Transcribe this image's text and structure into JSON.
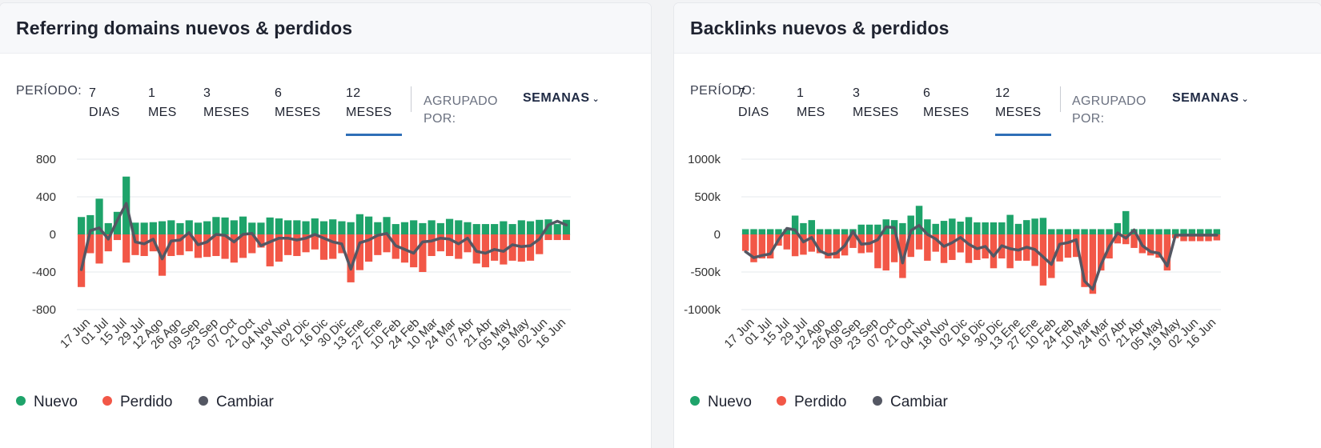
{
  "colors": {
    "new": "#1ea36a",
    "lost": "#f25747",
    "change": "#545763",
    "grid": "#e6e8ec",
    "active": "#2f6fb7"
  },
  "controls": {
    "period_label": "PERÍODO:",
    "periods": [
      {
        "line1": "7",
        "line2": "DIAS"
      },
      {
        "line1": "1",
        "line2": "MES"
      },
      {
        "line1": "3",
        "line2": "MESES"
      },
      {
        "line1": "6",
        "line2": "MESES"
      },
      {
        "line1": "12",
        "line2": "MESES"
      }
    ],
    "active_period": 4,
    "group_label_1": "AGRUPADO",
    "group_label_2": "POR:",
    "group_value": "SEMANAS"
  },
  "legend": {
    "new": "Nuevo",
    "lost": "Perdido",
    "change": "Cambiar"
  },
  "panels": {
    "left": {
      "title": "Referring domains nuevos & perdidos"
    },
    "right": {
      "title": "Backlinks nuevos & perdidos"
    }
  },
  "chart_data": [
    {
      "type": "bar",
      "title": "Referring domains nuevos & perdidos",
      "ylim": [
        -800,
        800
      ],
      "yticks": [
        800,
        400,
        0,
        -400,
        -800
      ],
      "ytick_labels": [
        "800",
        "400",
        "0",
        "-400",
        "-800"
      ],
      "xtick_labels": [
        "17 Jun",
        "01 Jul",
        "15 Jul",
        "29 Jul",
        "12 Ago",
        "26 Ago",
        "09 Sep",
        "23 Sep",
        "07 Oct",
        "21 Oct",
        "04 Nov",
        "18 Nov",
        "02 Dic",
        "16 Dic",
        "30 Dic",
        "13 Ene",
        "27 Ene",
        "10 Feb",
        "24 Feb",
        "10 Mar",
        "24 Mar",
        "07 Abr",
        "21 Abr",
        "05 May",
        "19 May",
        "02 Jun",
        "16 Jun"
      ],
      "series": [
        {
          "name": "Nuevo",
          "values": [
            185,
            205,
            380,
            120,
            240,
            615,
            125,
            125,
            130,
            140,
            150,
            120,
            150,
            125,
            140,
            185,
            180,
            150,
            190,
            125,
            125,
            180,
            170,
            150,
            150,
            140,
            170,
            140,
            160,
            140,
            130,
            215,
            190,
            130,
            185,
            110,
            130,
            150,
            120,
            150,
            120,
            165,
            150,
            130,
            110,
            110,
            110,
            140,
            110,
            150,
            140,
            155,
            160,
            110,
            155
          ]
        },
        {
          "name": "Perdido",
          "values": [
            -560,
            -200,
            -310,
            -180,
            -60,
            -300,
            -220,
            -230,
            -180,
            -440,
            -230,
            -220,
            -180,
            -250,
            -240,
            -230,
            -260,
            -300,
            -250,
            -200,
            -140,
            -340,
            -290,
            -220,
            -230,
            -190,
            -160,
            -270,
            -260,
            -200,
            -510,
            -380,
            -290,
            -220,
            -190,
            -260,
            -300,
            -350,
            -400,
            -230,
            -180,
            -230,
            -260,
            -190,
            -310,
            -350,
            -280,
            -320,
            -280,
            -290,
            -280,
            -210,
            -60,
            -60,
            -60
          ]
        },
        {
          "name": "Cambiar",
          "values": [
            -375,
            40,
            70,
            -50,
            150,
            330,
            -80,
            -100,
            -50,
            -260,
            -70,
            -60,
            20,
            -110,
            -80,
            0,
            -10,
            -80,
            0,
            10,
            -120,
            -80,
            -40,
            -40,
            -60,
            -40,
            0,
            -40,
            -80,
            -100,
            -370,
            -90,
            -60,
            -10,
            10,
            -120,
            -160,
            -200,
            -80,
            -70,
            -40,
            -50,
            -100,
            -40,
            -180,
            -200,
            -160,
            -180,
            -110,
            -130,
            -120,
            -50,
            100,
            140,
            100
          ]
        }
      ]
    },
    {
      "type": "bar",
      "title": "Backlinks nuevos & perdidos",
      "ylim": [
        -1000,
        1000
      ],
      "yticks": [
        1000,
        500,
        0,
        -500,
        -1000
      ],
      "ytick_labels": [
        "1000k",
        "500k",
        "0",
        "-500k",
        "-1000k"
      ],
      "xtick_labels": [
        "17 Jun",
        "01 Jul",
        "15 Jul",
        "29 Jul",
        "12 Ago",
        "26 Ago",
        "09 Sep",
        "23 Sep",
        "07 Oct",
        "21 Oct",
        "04 Nov",
        "18 Nov",
        "02 Dic",
        "16 Dic",
        "30 Dic",
        "13 Ene",
        "27 Ene",
        "10 Feb",
        "24 Feb",
        "10 Mar",
        "24 Mar",
        "07 Abr",
        "21 Abr",
        "05 May",
        "19 May",
        "02 Jun",
        "16 Jun"
      ],
      "series": [
        {
          "name": "Nuevo",
          "values": [
            70,
            70,
            70,
            70,
            70,
            70,
            250,
            150,
            190,
            70,
            70,
            70,
            70,
            70,
            130,
            130,
            130,
            200,
            190,
            150,
            250,
            380,
            200,
            140,
            180,
            210,
            170,
            230,
            160,
            160,
            160,
            160,
            260,
            140,
            190,
            210,
            220,
            70,
            70,
            70,
            70,
            70,
            70,
            70,
            70,
            150,
            310,
            70,
            70,
            70,
            70,
            70,
            70,
            70,
            70,
            70,
            70,
            70
          ]
        },
        {
          "name": "Perdido",
          "values": [
            -220,
            -370,
            -320,
            -320,
            -150,
            -200,
            -290,
            -270,
            -230,
            -250,
            -320,
            -320,
            -280,
            -180,
            -250,
            -240,
            -450,
            -480,
            -370,
            -580,
            -300,
            -200,
            -350,
            -230,
            -380,
            -340,
            -240,
            -380,
            -340,
            -320,
            -450,
            -320,
            -450,
            -350,
            -350,
            -420,
            -680,
            -580,
            -360,
            -310,
            -300,
            -700,
            -790,
            -480,
            -320,
            -120,
            -130,
            -180,
            -250,
            -280,
            -310,
            -480,
            -50,
            -90,
            -90,
            -90,
            -90,
            -80
          ]
        },
        {
          "name": "Cambiar",
          "values": [
            -230,
            -310,
            -280,
            -260,
            -70,
            80,
            60,
            -100,
            -40,
            -220,
            -270,
            -250,
            -150,
            40,
            -130,
            -120,
            -70,
            100,
            90,
            -380,
            50,
            120,
            0,
            -60,
            -160,
            -110,
            -40,
            -130,
            -190,
            -160,
            -290,
            -150,
            -190,
            -210,
            -170,
            -200,
            -300,
            -400,
            -130,
            -110,
            -70,
            -620,
            -730,
            -400,
            -160,
            20,
            -50,
            60,
            -150,
            -230,
            -250,
            -420,
            -10,
            -10,
            -10,
            -10,
            -10,
            -10
          ]
        }
      ]
    }
  ]
}
